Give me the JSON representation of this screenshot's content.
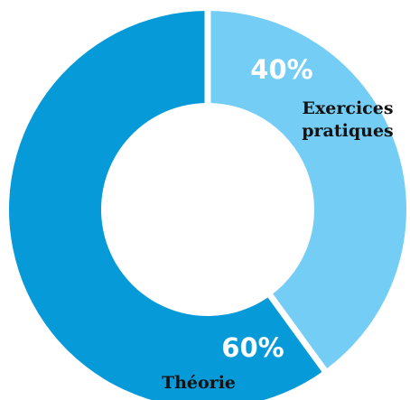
{
  "chart_data": {
    "type": "pie",
    "donut": true,
    "slices": [
      {
        "label": "Exercices pratiques",
        "label_lines": [
          "Exercices",
          "pratiques"
        ],
        "value": 40,
        "value_label": "40%",
        "color": "#74cdf4"
      },
      {
        "label": "Théorie",
        "label_lines": [
          "Théorie"
        ],
        "value": 60,
        "value_label": "60%",
        "color": "#069ad9"
      }
    ],
    "separator_color": "#ffffff",
    "start": "top, clockwise"
  }
}
